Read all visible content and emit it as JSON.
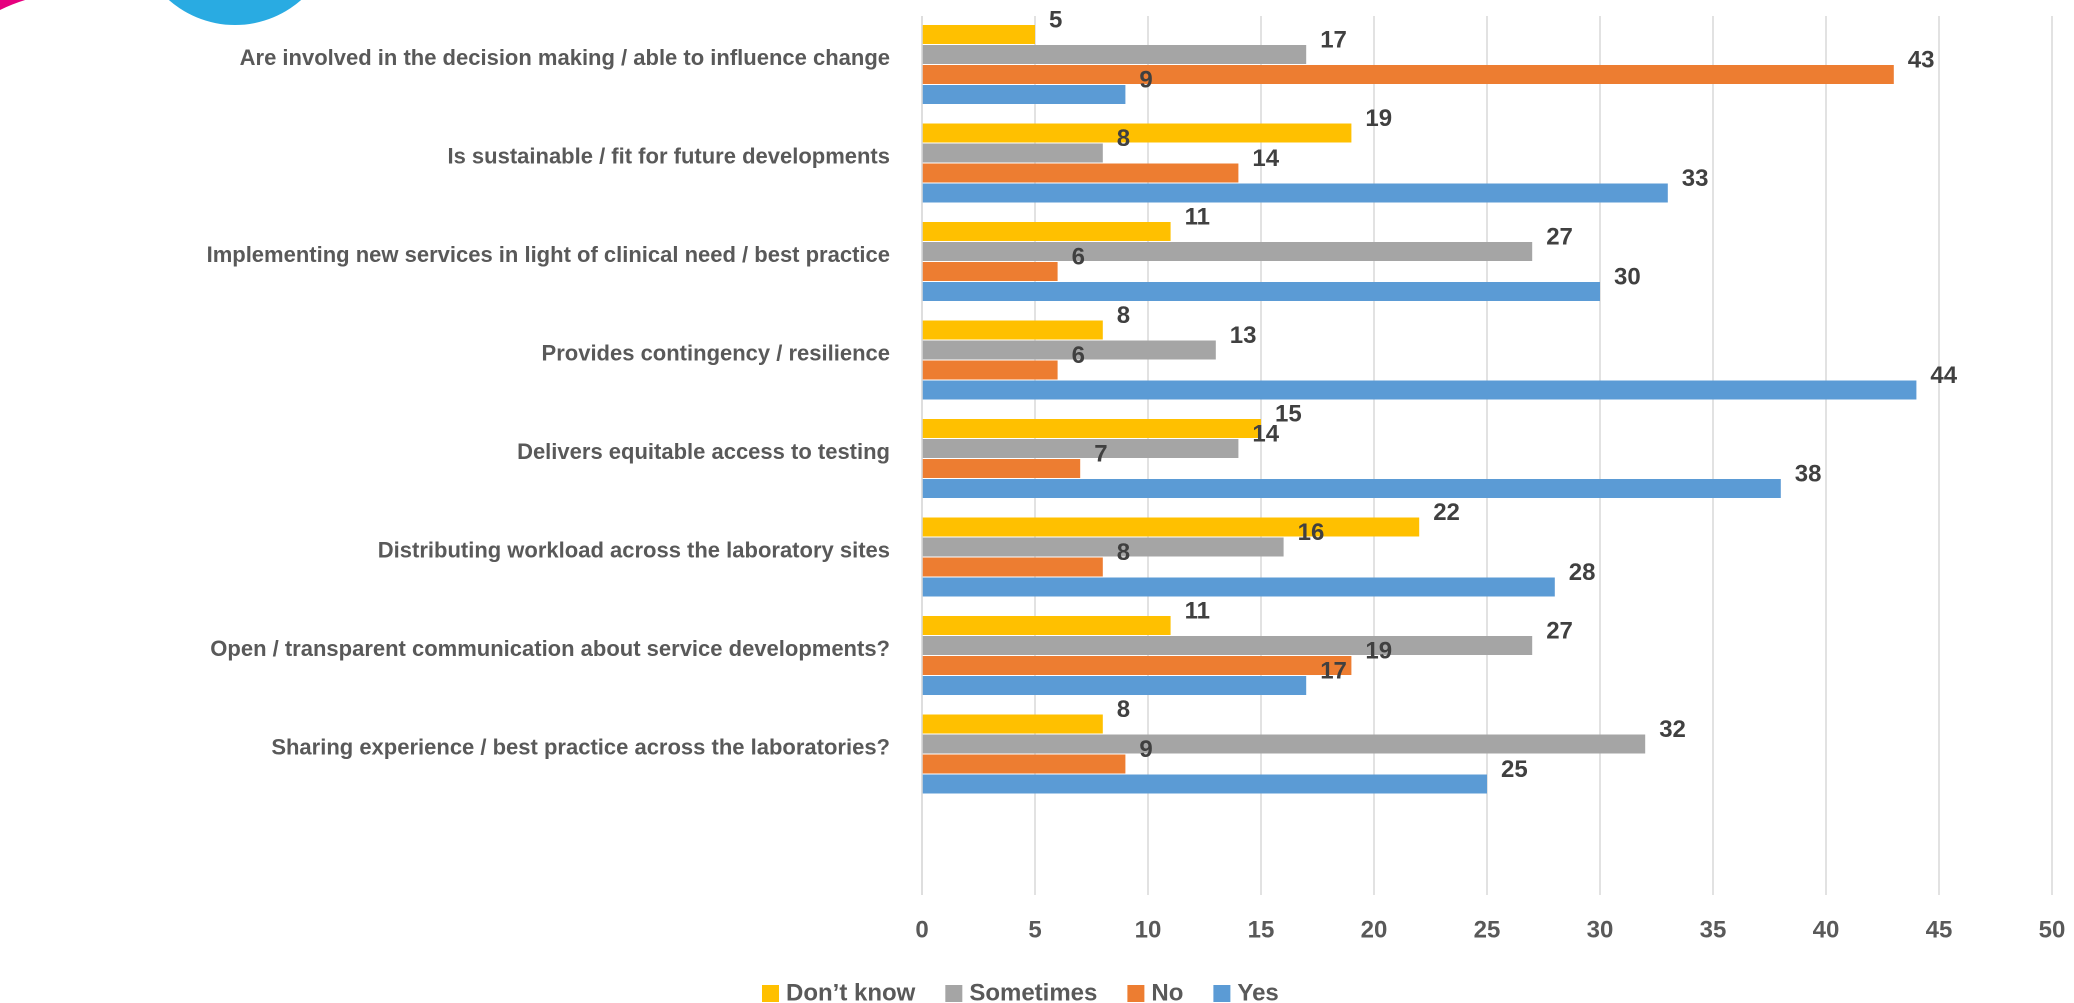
{
  "chart_data": {
    "type": "hbar",
    "categories": [
      "Are involved in the decision making / able to influence change",
      "Is sustainable /  fit for future developments",
      "Implementing new services in light of clinical need / best practice",
      "Provides contingency / resilience",
      "Delivers equitable access to testing",
      "Distributing workload across the laboratory sites",
      "Open / transparent communication about service developments?",
      "Sharing experience / best practice across the laboratories?"
    ],
    "series": [
      {
        "name": "Don’t know",
        "color": "#ffc000",
        "values": [
          5,
          19,
          11,
          8,
          15,
          22,
          11,
          8
        ]
      },
      {
        "name": "Sometimes",
        "color": "#a5a5a5",
        "values": [
          17,
          8,
          27,
          13,
          14,
          16,
          27,
          32
        ]
      },
      {
        "name": "No",
        "color": "#ed7d31",
        "values": [
          43,
          14,
          6,
          6,
          7,
          8,
          19,
          9
        ]
      },
      {
        "name": "Yes",
        "color": "#5b9bd5",
        "values": [
          9,
          33,
          30,
          44,
          38,
          28,
          17,
          25
        ]
      }
    ],
    "xlim": [
      0,
      50
    ],
    "xticks": [
      0,
      5,
      10,
      15,
      20,
      25,
      30,
      35,
      40,
      45,
      50
    ],
    "grid": true,
    "legend": "bottom"
  }
}
